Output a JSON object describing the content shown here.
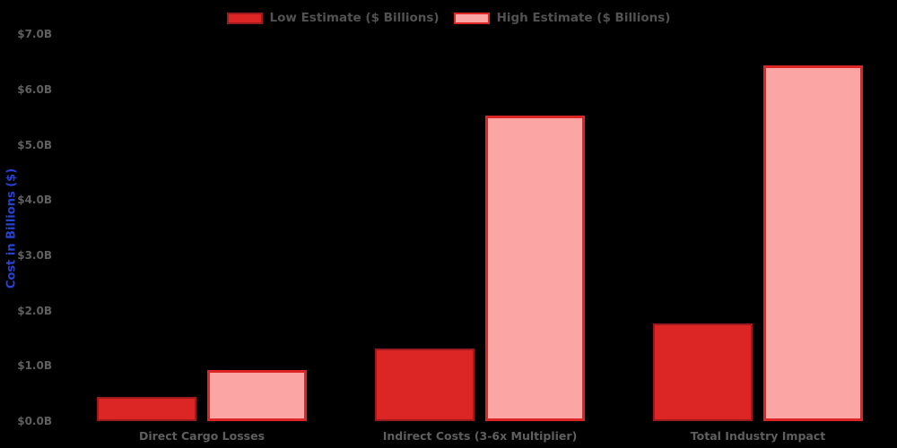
{
  "page": {
    "background": "#000000"
  },
  "chart_data": {
    "type": "bar",
    "title": "",
    "categories": [
      "Direct Cargo Losses",
      "Indirect Costs (3-6x Multiplier)",
      "Total Industry Impact"
    ],
    "series": [
      {
        "name": "Low Estimate ($ Billions)",
        "values": [
          0.44,
          1.32,
          1.76
        ],
        "fill": "#dc2626",
        "edge": "#991b1b"
      },
      {
        "name": "High Estimate ($ Billions)",
        "values": [
          0.92,
          5.52,
          6.44
        ],
        "fill": "#fca5a5",
        "edge": "#dc2626"
      }
    ],
    "xlabel": "",
    "ylabel": "Cost in Billions ($)",
    "ylim": [
      0,
      7
    ],
    "ytick_labels": [
      "$0.0B",
      "$1.0B",
      "$2.0B",
      "$3.0B",
      "$4.0B",
      "$5.0B",
      "$6.0B",
      "$7.0B"
    ],
    "grid": false,
    "legend_position": "top-center"
  },
  "colors": {
    "background": "#000000",
    "tick_text": "#5f5f5f",
    "category_text": "#5f5f5f",
    "legend_text": "#525252",
    "ylabel_text": "#2840d4"
  }
}
